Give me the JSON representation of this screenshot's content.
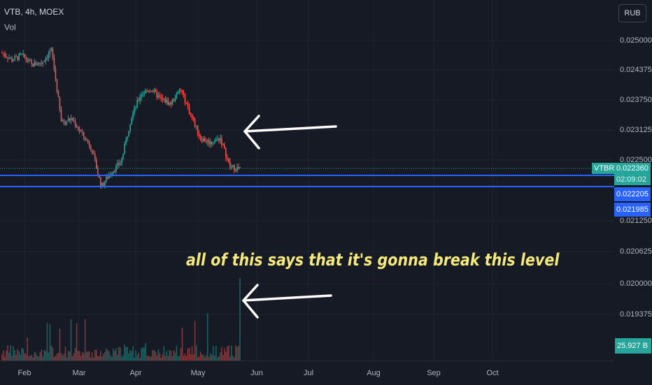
{
  "header": {
    "symbol_line": "VTB, 4h, MOEX",
    "vol_label": "Vol",
    "currency": "RUB"
  },
  "annotation": "all of this says that it's gonna break this level",
  "price_axis": {
    "ticks": [
      "0.025000",
      "0.024375",
      "0.023750",
      "0.023125",
      "0.022500",
      "0.021250",
      "0.020625",
      "0.020000",
      "0.019375"
    ]
  },
  "badges": {
    "ticker": "VTBR",
    "last_price": "0.022360",
    "countdown": "02:09:02",
    "line1_price": "0.022205",
    "line2_price": "0.021985",
    "volume": "25.927 B"
  },
  "colors": {
    "up": "#26a69a",
    "down": "#ef5350",
    "level_line": "#2962ff",
    "annotation": "#f5e97c"
  },
  "chart_data": {
    "type": "line",
    "title": "",
    "instrument": "VTB, 4h, MOEX",
    "x": [
      "Feb",
      "Mar",
      "Apr",
      "May",
      "Jun",
      "Jul",
      "Aug",
      "Sep",
      "Oct"
    ],
    "series": [
      {
        "values_approx_close": [
          0.02475,
          0.0246,
          0.0247,
          0.0245,
          0.02455,
          0.0248,
          0.0233,
          0.0234,
          0.0231,
          0.0228,
          0.022,
          0.0223,
          0.0225,
          0.0234,
          0.0239,
          0.024,
          0.0238,
          0.0237,
          0.024,
          0.0235,
          0.023,
          0.0229,
          0.023,
          0.0224,
          0.02236
        ]
      }
    ],
    "ylim": [
      0.0191,
      0.0252
    ],
    "horizontal_levels": [
      0.022205,
      0.021985
    ],
    "last_price": 0.02236,
    "volume_last": "25.927 B"
  }
}
